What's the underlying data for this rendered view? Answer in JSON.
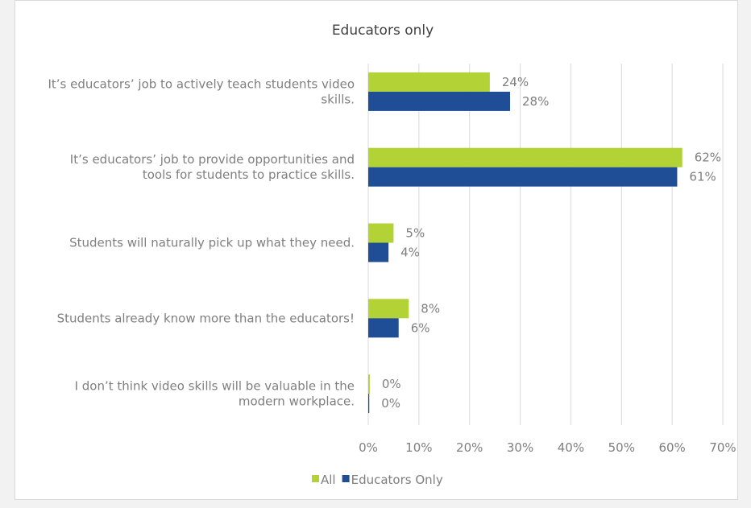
{
  "chart_data": {
    "type": "bar",
    "orientation": "horizontal",
    "title": "Educators only",
    "categories": [
      [
        "It’s educators’ job to actively teach students video",
        "skills."
      ],
      [
        "It’s educators’ job to provide opportunities and",
        "tools for students to practice skills."
      ],
      [
        "Students will naturally pick up what they need."
      ],
      [
        "Students already know more than the educators!"
      ],
      [
        "I don’t think video skills will be valuable in the",
        "modern workplace."
      ]
    ],
    "series": [
      {
        "name": "All",
        "color": "#b2d235",
        "values": [
          24,
          62,
          5,
          8,
          0.3
        ],
        "labels": [
          "24%",
          "62%",
          "5%",
          "8%",
          "0%"
        ]
      },
      {
        "name": "Educators Only",
        "color": "#1f4e96",
        "values": [
          28,
          61,
          4,
          6,
          0.2
        ],
        "labels": [
          "28%",
          "61%",
          "4%",
          "6%",
          "0%"
        ]
      }
    ],
    "xlim": [
      0,
      70
    ],
    "xticks": [
      "0%",
      "10%",
      "20%",
      "30%",
      "40%",
      "50%",
      "60%",
      "70%"
    ],
    "grid": true,
    "legend_position": "bottom",
    "colors": {
      "grid": "#d9d9d9",
      "text": "#7f7f7f",
      "title": "#404040"
    }
  }
}
